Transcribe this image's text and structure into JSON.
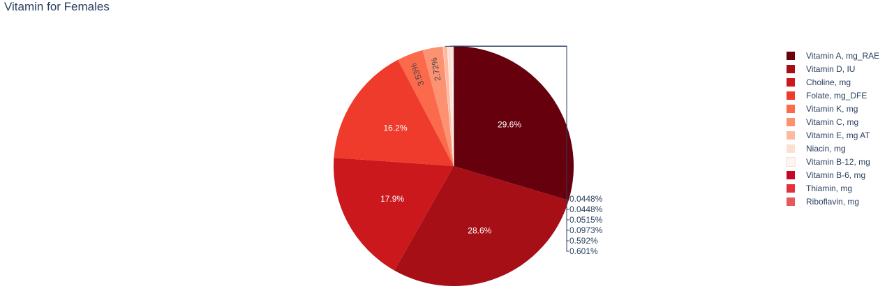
{
  "title": "Vitamin for Females",
  "chart_data": {
    "type": "pie",
    "title": "Vitamin for Females",
    "legend_position": "right",
    "sort": "descending",
    "direction": "clockwise",
    "slices": [
      {
        "label": "Vitamin A, mg_RAE",
        "value": 29.6,
        "text": "29.6%",
        "color": "#67000d"
      },
      {
        "label": "Vitamin D, IU",
        "value": 28.6,
        "text": "28.6%",
        "color": "#a50f15"
      },
      {
        "label": "Choline, mg",
        "value": 17.9,
        "text": "17.9%",
        "color": "#cb181d"
      },
      {
        "label": "Folate, mg_DFE",
        "value": 16.2,
        "text": "16.2%",
        "color": "#ef3b2c"
      },
      {
        "label": "Vitamin K, mg",
        "value": 3.53,
        "text": "3.53%",
        "color": "#fb6a4a"
      },
      {
        "label": "Vitamin C, mg",
        "value": 2.72,
        "text": "2.72%",
        "color": "#fc9272"
      },
      {
        "label": "Vitamin E, mg AT",
        "value": 0.601,
        "text": "0.601%",
        "color": "#fcbba1"
      },
      {
        "label": "Niacin, mg",
        "value": 0.592,
        "text": "0.592%",
        "color": "#fee0d2"
      },
      {
        "label": "Vitamin B-12, mg",
        "value": 0.0973,
        "text": "0.0973%",
        "color": "#fff5f0"
      },
      {
        "label": "Vitamin B-6, mg",
        "value": 0.0515,
        "text": "0.0515%",
        "color": "#c70525"
      },
      {
        "label": "Thiamin, mg",
        "value": 0.0448,
        "text": "0.0448%",
        "color": "#e2313b"
      },
      {
        "label": "Riboflavin, mg",
        "value": 0.0448,
        "text": "0.0448%",
        "color": "#e5595b"
      }
    ]
  }
}
